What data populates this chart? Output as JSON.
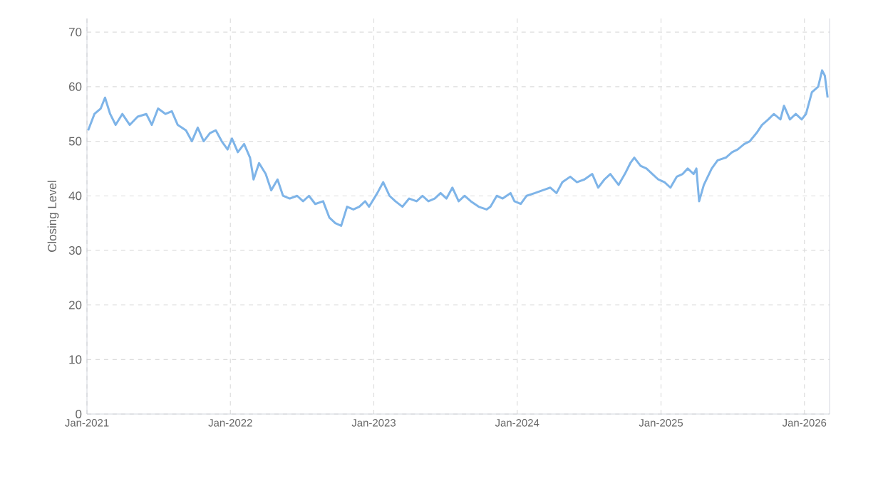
{
  "chart_data": {
    "type": "line",
    "ylabel": "Closing Level",
    "color": "#7eb4e8",
    "x": [
      "2021-01-04",
      "2021-01-20",
      "2021-02-05",
      "2021-02-16",
      "2021-03-01",
      "2021-03-15",
      "2021-04-01",
      "2021-04-20",
      "2021-05-10",
      "2021-06-01",
      "2021-06-15",
      "2021-07-01",
      "2021-07-20",
      "2021-08-05",
      "2021-08-20",
      "2021-09-10",
      "2021-09-25",
      "2021-10-10",
      "2021-10-25",
      "2021-11-10",
      "2021-11-25",
      "2021-12-10",
      "2021-12-25",
      "2022-01-05",
      "2022-01-20",
      "2022-02-05",
      "2022-02-20",
      "2022-03-01",
      "2022-03-15",
      "2022-04-01",
      "2022-04-15",
      "2022-05-01",
      "2022-05-15",
      "2022-06-01",
      "2022-06-20",
      "2022-07-05",
      "2022-07-20",
      "2022-08-05",
      "2022-08-25",
      "2022-09-10",
      "2022-09-25",
      "2022-10-10",
      "2022-10-25",
      "2022-11-10",
      "2022-11-25",
      "2022-12-10",
      "2022-12-20",
      "2023-01-10",
      "2023-01-25",
      "2023-02-10",
      "2023-02-25",
      "2023-03-15",
      "2023-04-01",
      "2023-04-20",
      "2023-05-05",
      "2023-05-20",
      "2023-06-05",
      "2023-06-20",
      "2023-07-05",
      "2023-07-20",
      "2023-08-05",
      "2023-08-20",
      "2023-09-05",
      "2023-09-25",
      "2023-10-15",
      "2023-10-25",
      "2023-11-10",
      "2023-11-25",
      "2023-12-15",
      "2023-12-25",
      "2024-01-10",
      "2024-01-25",
      "2024-02-15",
      "2024-03-05",
      "2024-03-25",
      "2024-04-10",
      "2024-04-25",
      "2024-05-15",
      "2024-06-01",
      "2024-06-20",
      "2024-07-10",
      "2024-07-25",
      "2024-08-10",
      "2024-08-25",
      "2024-09-15",
      "2024-10-01",
      "2024-10-15",
      "2024-10-25",
      "2024-11-10",
      "2024-11-25",
      "2024-12-10",
      "2024-12-25",
      "2025-01-10",
      "2025-01-25",
      "2025-02-10",
      "2025-02-25",
      "2025-03-10",
      "2025-03-25",
      "2025-04-01",
      "2025-04-08",
      "2025-04-20",
      "2025-05-10",
      "2025-05-25",
      "2025-06-15",
      "2025-07-01",
      "2025-07-15",
      "2025-08-01",
      "2025-08-15",
      "2025-09-01",
      "2025-09-15",
      "2025-10-01",
      "2025-10-15",
      "2025-11-01",
      "2025-11-10",
      "2025-11-25",
      "2025-12-10",
      "2025-12-25",
      "2026-01-05",
      "2026-01-20",
      "2026-02-05",
      "2026-02-15",
      "2026-02-22",
      "2026-03-01"
    ],
    "values": [
      52,
      55,
      56,
      58,
      55,
      53,
      55,
      53,
      54.5,
      55,
      53,
      56,
      55,
      55.5,
      53,
      52,
      50,
      52.5,
      50,
      51.5,
      52,
      50,
      48.5,
      50.5,
      48,
      49.5,
      47,
      43,
      46,
      44,
      41,
      43,
      40,
      39.5,
      40,
      39,
      40,
      38.5,
      39,
      36,
      35,
      34.5,
      38,
      37.5,
      38,
      39,
      38,
      40.5,
      42.5,
      40,
      39,
      38,
      39.5,
      39,
      40,
      39,
      39.5,
      40.5,
      39.5,
      41.5,
      39,
      40,
      39,
      38,
      37.5,
      38,
      40,
      39.5,
      40.5,
      39,
      38.5,
      40,
      40.5,
      41,
      41.5,
      40.5,
      42.5,
      43.5,
      42.5,
      43,
      44,
      41.5,
      43,
      44,
      42,
      44,
      46,
      47,
      45.5,
      45,
      44,
      43,
      42.5,
      41.5,
      43.5,
      44,
      45,
      44,
      45,
      39,
      42,
      45,
      46.5,
      47,
      48,
      48.5,
      49.5,
      50,
      51.5,
      53,
      54,
      55,
      54,
      56.5,
      54,
      55,
      54,
      55,
      59,
      60,
      63,
      62,
      58
    ],
    "xlim": [
      "2021-01-01",
      "2026-03-06"
    ],
    "xticks": [
      {
        "value": "2021-01-01",
        "label": "Jan-2021"
      },
      {
        "value": "2022-01-01",
        "label": "Jan-2022"
      },
      {
        "value": "2023-01-01",
        "label": "Jan-2023"
      },
      {
        "value": "2024-01-01",
        "label": "Jan-2024"
      },
      {
        "value": "2025-01-01",
        "label": "Jan-2025"
      },
      {
        "value": "2026-01-01",
        "label": "Jan-2026"
      }
    ],
    "ylim": [
      0,
      72.5
    ],
    "yticks": [
      0,
      10,
      20,
      30,
      40,
      50,
      60,
      70
    ],
    "grid": true
  }
}
